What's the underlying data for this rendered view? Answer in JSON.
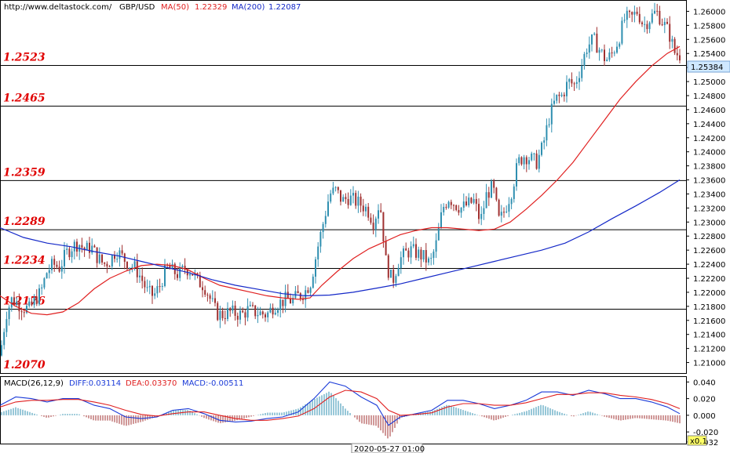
{
  "header": {
    "url": "http://www.deltastock.com/",
    "symbol": "GBP/USD",
    "ma50_label": "MA(50)",
    "ma50_value": "1.22329",
    "ma200_label": "MA(200)",
    "ma200_value": "1.22087"
  },
  "colors": {
    "bull": "#2f8fb0",
    "bear": "#a03030",
    "ma50": "#e02020",
    "ma200": "#1428c8",
    "level": "#e00000",
    "diff": "#1a3ad8",
    "dea": "#e02020",
    "macd_pos": "#2f8fb0",
    "macd_neg": "#a03030"
  },
  "chart_data": [
    {
      "type": "candlestick",
      "title": "GBP/USD",
      "ylim": [
        1.2085,
        1.2615
      ],
      "y_ticks": [
        "1.26000",
        "1.25800",
        "1.25600",
        "1.25400",
        "1.25200",
        "1.25000",
        "1.24800",
        "1.24600",
        "1.24400",
        "1.24200",
        "1.24000",
        "1.23800",
        "1.23600",
        "1.23400",
        "1.23200",
        "1.23000",
        "1.22800",
        "1.22600",
        "1.22400",
        "1.22200",
        "1.22000",
        "1.21800",
        "1.21600",
        "1.21400",
        "1.21200",
        "1.21000"
      ],
      "last_price": "1.25384",
      "levels": [
        {
          "label": "1.2523",
          "value": 1.2523
        },
        {
          "label": "1.2465",
          "value": 1.2465
        },
        {
          "label": "1.2359",
          "value": 1.2359
        },
        {
          "label": "1.2289",
          "value": 1.2289
        },
        {
          "label": "1.2234",
          "value": 1.2234
        },
        {
          "label": "1.2176",
          "value": 1.2176
        },
        {
          "label": "1.2070",
          "value": 1.207
        }
      ],
      "close_path": [
        [
          0,
          1.211
        ],
        [
          8,
          1.217
        ],
        [
          15,
          1.219
        ],
        [
          22,
          1.2185
        ],
        [
          30,
          1.2178
        ],
        [
          38,
          1.2176
        ],
        [
          45,
          1.219
        ],
        [
          52,
          1.22
        ],
        [
          60,
          1.223
        ],
        [
          68,
          1.224
        ],
        [
          76,
          1.2235
        ],
        [
          84,
          1.2255
        ],
        [
          92,
          1.2265
        ],
        [
          100,
          1.227
        ],
        [
          108,
          1.226
        ],
        [
          116,
          1.2265
        ],
        [
          124,
          1.225
        ],
        [
          132,
          1.224
        ],
        [
          140,
          1.2245
        ],
        [
          148,
          1.226
        ],
        [
          156,
          1.225
        ],
        [
          164,
          1.224
        ],
        [
          172,
          1.2235
        ],
        [
          180,
          1.222
        ],
        [
          188,
          1.22
        ],
        [
          196,
          1.2195
        ],
        [
          204,
          1.221
        ],
        [
          212,
          1.2235
        ],
        [
          220,
          1.223
        ],
        [
          228,
          1.2225
        ],
        [
          236,
          1.2235
        ],
        [
          244,
          1.223
        ],
        [
          252,
          1.2215
        ],
        [
          260,
          1.221
        ],
        [
          268,
          1.219
        ],
        [
          276,
          1.217
        ],
        [
          284,
          1.2168
        ],
        [
          292,
          1.2172
        ],
        [
          300,
          1.217
        ],
        [
          308,
          1.2168
        ],
        [
          316,
          1.2175
        ],
        [
          324,
          1.2172
        ],
        [
          332,
          1.217
        ],
        [
          340,
          1.2168
        ],
        [
          348,
          1.218
        ],
        [
          356,
          1.2185
        ],
        [
          364,
          1.219
        ],
        [
          372,
          1.2188
        ],
        [
          380,
          1.2195
        ],
        [
          388,
          1.22
        ],
        [
          396,
          1.2215
        ],
        [
          404,
          1.226
        ],
        [
          412,
          1.23
        ],
        [
          420,
          1.234
        ],
        [
          428,
          1.2345
        ],
        [
          436,
          1.233
        ],
        [
          444,
          1.2335
        ],
        [
          452,
          1.233
        ],
        [
          460,
          1.2325
        ],
        [
          468,
          1.2318
        ],
        [
          476,
          1.23
        ],
        [
          484,
          1.233
        ],
        [
          492,
          1.224
        ],
        [
          500,
          1.2215
        ],
        [
          508,
          1.2245
        ],
        [
          516,
          1.2255
        ],
        [
          524,
          1.226
        ],
        [
          532,
          1.2255
        ],
        [
          540,
          1.225
        ],
        [
          548,
          1.224
        ],
        [
          556,
          1.227
        ],
        [
          564,
          1.232
        ],
        [
          572,
          1.2335
        ],
        [
          580,
          1.2325
        ],
        [
          588,
          1.232
        ],
        [
          596,
          1.2325
        ],
        [
          604,
          1.233
        ],
        [
          612,
          1.23
        ],
        [
          620,
          1.234
        ],
        [
          628,
          1.235
        ],
        [
          636,
          1.23
        ],
        [
          644,
          1.232
        ],
        [
          652,
          1.2345
        ],
        [
          660,
          1.2385
        ],
        [
          668,
          1.2395
        ],
        [
          676,
          1.239
        ],
        [
          684,
          1.2385
        ],
        [
          692,
          1.241
        ],
        [
          700,
          1.245
        ],
        [
          708,
          1.2475
        ],
        [
          716,
          1.248
        ],
        [
          724,
          1.25
        ],
        [
          732,
          1.2495
        ],
        [
          740,
          1.252
        ],
        [
          748,
          1.255
        ],
        [
          756,
          1.256
        ],
        [
          764,
          1.2545
        ],
        [
          772,
          1.253
        ],
        [
          780,
          1.254
        ],
        [
          788,
          1.256
        ],
        [
          796,
          1.259
        ],
        [
          804,
          1.259
        ],
        [
          812,
          1.26
        ],
        [
          820,
          1.258
        ],
        [
          828,
          1.259
        ],
        [
          836,
          1.26
        ],
        [
          844,
          1.2585
        ],
        [
          852,
          1.257
        ],
        [
          860,
          1.254
        ],
        [
          866,
          1.2538
        ]
      ],
      "series": [
        {
          "name": "MA(50)",
          "points": [
            [
              0,
              1.2195
            ],
            [
              20,
              1.218
            ],
            [
              40,
              1.217
            ],
            [
              60,
              1.2168
            ],
            [
              80,
              1.2172
            ],
            [
              100,
              1.2185
            ],
            [
              120,
              1.2205
            ],
            [
              140,
              1.222
            ],
            [
              160,
              1.223
            ],
            [
              180,
              1.2238
            ],
            [
              200,
              1.224
            ],
            [
              220,
              1.2238
            ],
            [
              240,
              1.2232
            ],
            [
              260,
              1.222
            ],
            [
              280,
              1.221
            ],
            [
              300,
              1.2205
            ],
            [
              320,
              1.22
            ],
            [
              340,
              1.2195
            ],
            [
              360,
              1.2192
            ],
            [
              380,
              1.219
            ],
            [
              395,
              1.2192
            ],
            [
              410,
              1.221
            ],
            [
              430,
              1.223
            ],
            [
              450,
              1.2248
            ],
            [
              470,
              1.2262
            ],
            [
              490,
              1.2272
            ],
            [
              510,
              1.2282
            ],
            [
              530,
              1.2288
            ],
            [
              550,
              1.2292
            ],
            [
              570,
              1.2292
            ],
            [
              590,
              1.229
            ],
            [
              610,
              1.2288
            ],
            [
              630,
              1.229
            ],
            [
              650,
              1.23
            ],
            [
              670,
              1.2318
            ],
            [
              690,
              1.2338
            ],
            [
              710,
              1.236
            ],
            [
              730,
              1.2385
            ],
            [
              750,
              1.2415
            ],
            [
              770,
              1.2445
            ],
            [
              790,
              1.2475
            ],
            [
              810,
              1.25
            ],
            [
              830,
              1.2522
            ],
            [
              850,
              1.254
            ],
            [
              866,
              1.255
            ]
          ]
        },
        {
          "name": "MA(200)",
          "points": [
            [
              0,
              1.2292
            ],
            [
              30,
              1.2278
            ],
            [
              60,
              1.227
            ],
            [
              90,
              1.2265
            ],
            [
              120,
              1.2258
            ],
            [
              150,
              1.2252
            ],
            [
              180,
              1.2244
            ],
            [
              210,
              1.2236
            ],
            [
              240,
              1.2228
            ],
            [
              270,
              1.2218
            ],
            [
              300,
              1.221
            ],
            [
              330,
              1.2204
            ],
            [
              360,
              1.2198
            ],
            [
              390,
              1.2195
            ],
            [
              420,
              1.2196
            ],
            [
              450,
              1.22
            ],
            [
              480,
              1.2206
            ],
            [
              510,
              1.2212
            ],
            [
              540,
              1.222
            ],
            [
              570,
              1.2228
            ],
            [
              600,
              1.2236
            ],
            [
              630,
              1.2244
            ],
            [
              660,
              1.2252
            ],
            [
              690,
              1.226
            ],
            [
              720,
              1.227
            ],
            [
              750,
              1.2286
            ],
            [
              780,
              1.2305
            ],
            [
              810,
              1.2323
            ],
            [
              840,
              1.2342
            ],
            [
              866,
              1.236
            ]
          ]
        }
      ]
    },
    {
      "type": "macd",
      "title": "MACD(26,12,9)",
      "diff_label": "DIFF:0.03114",
      "dea_label": "DEA:0.03370",
      "macd_label": "MACD:-0.00511",
      "ylim": [
        -0.034,
        0.046
      ],
      "y_ticks": [
        "0.040",
        "0.020",
        "0.000",
        "-0.020",
        "-0.032"
      ],
      "multiplier_label": "x0.1",
      "time_label": "2020-05-27 01:00",
      "diff_path": [
        [
          0,
          0.012
        ],
        [
          20,
          0.022
        ],
        [
          40,
          0.02
        ],
        [
          60,
          0.016
        ],
        [
          80,
          0.02
        ],
        [
          100,
          0.02
        ],
        [
          120,
          0.012
        ],
        [
          140,
          0.008
        ],
        [
          160,
          -0.002
        ],
        [
          180,
          -0.004
        ],
        [
          200,
          -0.002
        ],
        [
          220,
          0.006
        ],
        [
          240,
          0.008
        ],
        [
          260,
          0.002
        ],
        [
          280,
          -0.006
        ],
        [
          300,
          -0.008
        ],
        [
          320,
          -0.007
        ],
        [
          340,
          -0.004
        ],
        [
          360,
          -0.002
        ],
        [
          380,
          0.004
        ],
        [
          400,
          0.02
        ],
        [
          420,
          0.04
        ],
        [
          440,
          0.035
        ],
        [
          460,
          0.022
        ],
        [
          480,
          0.012
        ],
        [
          495,
          -0.012
        ],
        [
          510,
          -0.002
        ],
        [
          530,
          0.002
        ],
        [
          550,
          0.006
        ],
        [
          570,
          0.018
        ],
        [
          590,
          0.018
        ],
        [
          610,
          0.014
        ],
        [
          630,
          0.008
        ],
        [
          650,
          0.012
        ],
        [
          670,
          0.018
        ],
        [
          690,
          0.028
        ],
        [
          710,
          0.028
        ],
        [
          730,
          0.024
        ],
        [
          750,
          0.03
        ],
        [
          770,
          0.026
        ],
        [
          790,
          0.02
        ],
        [
          810,
          0.02
        ],
        [
          830,
          0.016
        ],
        [
          850,
          0.01
        ],
        [
          866,
          0.002
        ]
      ],
      "dea_path": [
        [
          0,
          0.01
        ],
        [
          20,
          0.016
        ],
        [
          40,
          0.018
        ],
        [
          60,
          0.018
        ],
        [
          80,
          0.019
        ],
        [
          100,
          0.019
        ],
        [
          120,
          0.016
        ],
        [
          140,
          0.012
        ],
        [
          160,
          0.006
        ],
        [
          180,
          0.001
        ],
        [
          200,
          -0.001
        ],
        [
          220,
          0.002
        ],
        [
          240,
          0.004
        ],
        [
          260,
          0.004
        ],
        [
          280,
          0.0
        ],
        [
          300,
          -0.004
        ],
        [
          320,
          -0.006
        ],
        [
          340,
          -0.006
        ],
        [
          360,
          -0.004
        ],
        [
          380,
          -0.001
        ],
        [
          400,
          0.008
        ],
        [
          420,
          0.022
        ],
        [
          440,
          0.03
        ],
        [
          460,
          0.028
        ],
        [
          480,
          0.02
        ],
        [
          495,
          0.006
        ],
        [
          510,
          0.0
        ],
        [
          530,
          0.001
        ],
        [
          550,
          0.003
        ],
        [
          570,
          0.01
        ],
        [
          590,
          0.014
        ],
        [
          610,
          0.014
        ],
        [
          630,
          0.012
        ],
        [
          650,
          0.012
        ],
        [
          670,
          0.015
        ],
        [
          690,
          0.02
        ],
        [
          710,
          0.025
        ],
        [
          730,
          0.025
        ],
        [
          750,
          0.027
        ],
        [
          770,
          0.027
        ],
        [
          790,
          0.024
        ],
        [
          810,
          0.022
        ],
        [
          830,
          0.019
        ],
        [
          850,
          0.014
        ],
        [
          866,
          0.008
        ]
      ]
    }
  ]
}
